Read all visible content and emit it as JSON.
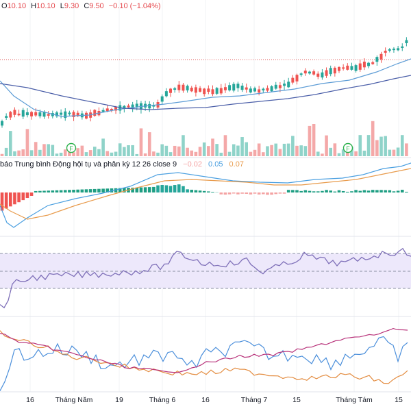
{
  "ohlc": {
    "o_key": "O",
    "o_val": "10.10",
    "h_key": "H",
    "h_val": "10.10",
    "l_key": "L",
    "l_val": "9.30",
    "c_key": "C",
    "c_val": "9.50",
    "change": "−0.10 (−1.04%)"
  },
  "macd": {
    "label": "báo Trung bình Động hội tụ và phân kỳ 12 26 close 9",
    "hist_val": "−0.02",
    "macd_val": "0.05",
    "signal_val": "0.07"
  },
  "xaxis": {
    "labels": [
      "16",
      "Tháng Năm",
      "19",
      "Tháng 6",
      "16",
      "Tháng 7",
      "15",
      "Tháng Tám",
      "15"
    ]
  },
  "events": {
    "marker": "F"
  },
  "colors": {
    "up": "#26a69a",
    "down": "#ef5350",
    "ma_fast": "#5b9bd5",
    "ma_slow": "#4a5ea8",
    "macd": "#4a9fe0",
    "signal": "#e89b4c",
    "rsi": "#7e6fb8",
    "rsi_band": "#ede8fb",
    "orange": "#e38b3e",
    "magenta": "#b8327a",
    "blue": "#4b8fdb"
  }
}
